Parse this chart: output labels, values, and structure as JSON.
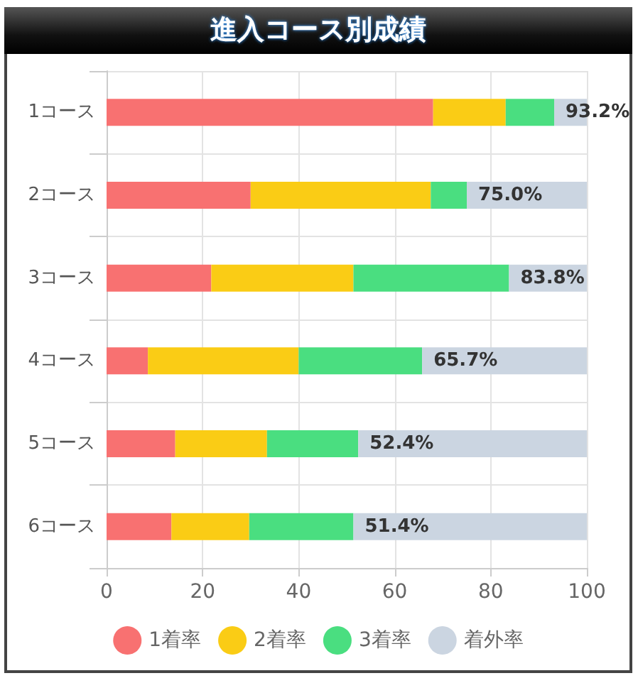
{
  "chart_data": {
    "type": "bar",
    "title": "進入コース別成績",
    "orientation": "horizontal",
    "stacked": true,
    "categories": [
      "1コース",
      "2コース",
      "3コース",
      "4コース",
      "5コース",
      "6コース"
    ],
    "series": [
      {
        "name": "1着率",
        "color": "#f87171",
        "values": [
          68.0,
          30.0,
          21.8,
          8.6,
          14.3,
          13.5
        ]
      },
      {
        "name": "2着率",
        "color": "#facc15",
        "values": [
          15.1,
          37.5,
          29.6,
          31.4,
          19.1,
          16.2
        ]
      },
      {
        "name": "3着率",
        "color": "#4ade80",
        "values": [
          10.1,
          7.5,
          32.4,
          25.7,
          19.0,
          21.7
        ]
      },
      {
        "name": "着外率",
        "color": "#cbd5e1",
        "values": [
          6.8,
          25.0,
          16.2,
          34.3,
          47.6,
          48.6
        ]
      }
    ],
    "annotations": [
      {
        "text": "93.2%",
        "x": 93.2,
        "y": "1コース"
      },
      {
        "text": "75.0%",
        "x": 75.0,
        "y": "2コース"
      },
      {
        "text": "83.8%",
        "x": 83.8,
        "y": "3コース"
      },
      {
        "text": "65.7%",
        "x": 65.7,
        "y": "4コース"
      },
      {
        "text": "52.4%",
        "x": 52.4,
        "y": "5コース"
      },
      {
        "text": "51.4%",
        "x": 51.4,
        "y": "6コース"
      }
    ],
    "xlim": [
      0,
      100
    ],
    "xticks": [
      0,
      20,
      40,
      60,
      80,
      100
    ],
    "grid": true,
    "legend": "bottom"
  }
}
